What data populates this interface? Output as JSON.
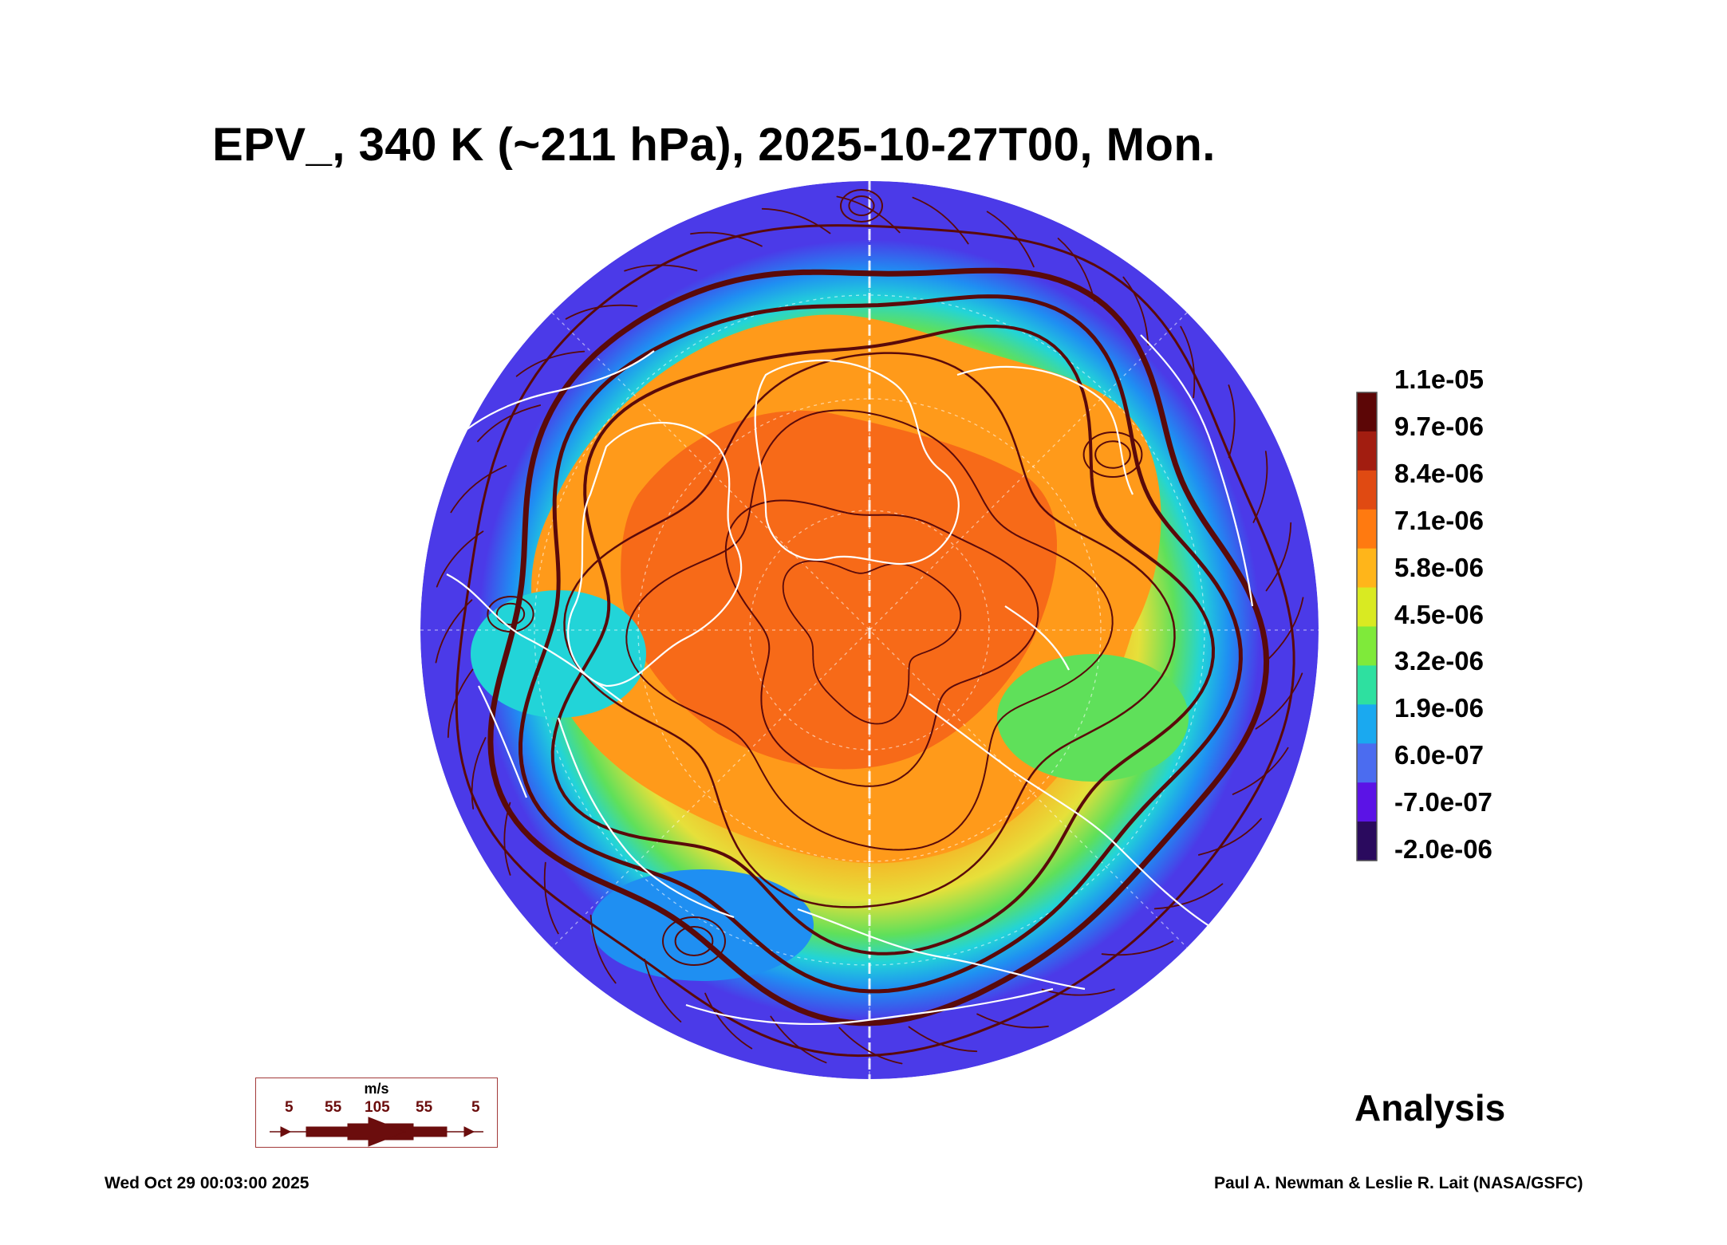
{
  "title": "EPV_, 340 K (~211 hPa), 2025-10-27T00, Mon.",
  "colorbar": {
    "labels": [
      "1.1e-05",
      "9.7e-06",
      "8.4e-06",
      "7.1e-06",
      "5.8e-06",
      "4.5e-06",
      "3.2e-06",
      "1.9e-06",
      "6.0e-07",
      "-7.0e-07",
      "-2.0e-06"
    ],
    "colors": [
      "#2a0a5e",
      "#5b13e6",
      "#4b6cf0",
      "#1aa9f0",
      "#2ee0a0",
      "#7fea3a",
      "#d9ea22",
      "#ffb51a",
      "#ff7a10",
      "#e04a12",
      "#a21d10",
      "#5c0606"
    ]
  },
  "annotation": "Analysis",
  "wind_legend": {
    "unit": "m/s",
    "speeds": [
      "5",
      "55",
      "105",
      "55",
      "5"
    ]
  },
  "footer": {
    "timestamp": "Wed Oct 29 00:03:00 2025",
    "credit": "Paul A. Newman & Leslie R. Lait (NASA/GSFC)"
  },
  "map": {
    "projection": "north-polar-orthographic",
    "field_colors": {
      "outer": "#4b3ae8",
      "ring_blue": "#1f8ff2",
      "cyan": "#22d4d8",
      "green": "#5fe05a",
      "yellow": "#e6e03a",
      "orange": "#ff9a1a",
      "core": "#f76a18",
      "dark_red": "#d8401a"
    },
    "streamline_color": "#5a0a0a",
    "coastline_color": "#ffffff"
  }
}
